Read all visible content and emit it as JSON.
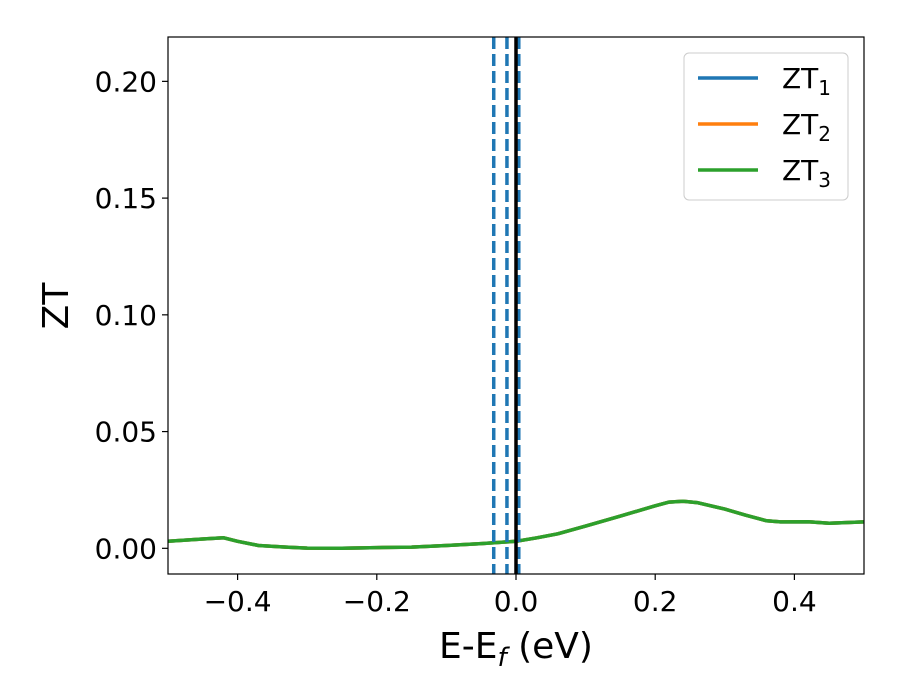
{
  "chart_data": {
    "type": "line",
    "xlabel": "E-E",
    "xlabel_sub": "f",
    "xlabel_unit": " (eV)",
    "ylabel": "ZT",
    "xlim": [
      -0.5,
      0.5
    ],
    "ylim": [
      -0.011,
      0.219
    ],
    "xticks": [
      -0.4,
      -0.2,
      0.0,
      0.2,
      0.4
    ],
    "xtick_labels": [
      "−0.4",
      "−0.2",
      "0.0",
      "0.2",
      "0.4"
    ],
    "yticks": [
      0.0,
      0.05,
      0.1,
      0.15,
      0.2
    ],
    "ytick_labels": [
      "0.00",
      "0.05",
      "0.10",
      "0.15",
      "0.20"
    ],
    "grid": false,
    "legend_position": "top-right",
    "series": [
      {
        "name": "ZT",
        "name_sub": "1",
        "color": "#1f77b4",
        "x": [
          -0.5,
          -0.45,
          -0.42,
          -0.4,
          -0.37,
          -0.33,
          -0.3,
          -0.25,
          -0.2,
          -0.15,
          -0.1,
          -0.05,
          0.0,
          0.03,
          0.06,
          0.1,
          0.15,
          0.2,
          0.22,
          0.24,
          0.26,
          0.3,
          0.33,
          0.36,
          0.38,
          0.42,
          0.45,
          0.5
        ],
        "y": [
          0.003,
          0.004,
          0.0045,
          0.003,
          0.0012,
          0.0005,
          0.0001,
          0.0,
          0.0003,
          0.0005,
          0.0012,
          0.002,
          0.003,
          0.0045,
          0.0062,
          0.0095,
          0.0138,
          0.0182,
          0.0198,
          0.0202,
          0.0196,
          0.0168,
          0.0142,
          0.0118,
          0.0113,
          0.0114,
          0.0107,
          0.0113
        ]
      },
      {
        "name": "ZT",
        "name_sub": "2",
        "color": "#ff7f0e",
        "x": [
          -0.5,
          -0.45,
          -0.42,
          -0.4,
          -0.37,
          -0.33,
          -0.3,
          -0.25,
          -0.2,
          -0.15,
          -0.1,
          -0.05,
          0.0,
          0.03,
          0.06,
          0.1,
          0.15,
          0.2,
          0.22,
          0.24,
          0.26,
          0.3,
          0.33,
          0.36,
          0.38,
          0.42,
          0.45,
          0.5
        ],
        "y": [
          0.003,
          0.004,
          0.0045,
          0.003,
          0.0012,
          0.0005,
          0.0001,
          0.0,
          0.0003,
          0.0005,
          0.0012,
          0.002,
          0.003,
          0.0045,
          0.0062,
          0.0095,
          0.0138,
          0.0182,
          0.0198,
          0.0202,
          0.0196,
          0.0168,
          0.0142,
          0.0118,
          0.0113,
          0.0114,
          0.0107,
          0.0113
        ]
      },
      {
        "name": "ZT",
        "name_sub": "3",
        "color": "#2ca02c",
        "x": [
          -0.5,
          -0.45,
          -0.42,
          -0.4,
          -0.37,
          -0.33,
          -0.3,
          -0.25,
          -0.2,
          -0.15,
          -0.1,
          -0.05,
          0.0,
          0.03,
          0.06,
          0.1,
          0.15,
          0.2,
          0.22,
          0.24,
          0.26,
          0.3,
          0.33,
          0.36,
          0.38,
          0.42,
          0.45,
          0.5
        ],
        "y": [
          0.003,
          0.004,
          0.0045,
          0.003,
          0.0012,
          0.0005,
          0.0001,
          0.0,
          0.0003,
          0.0005,
          0.0012,
          0.002,
          0.003,
          0.0045,
          0.0062,
          0.0095,
          0.0138,
          0.0182,
          0.0198,
          0.0202,
          0.0196,
          0.0168,
          0.0142,
          0.0118,
          0.0113,
          0.0114,
          0.0107,
          0.0113
        ]
      }
    ],
    "vlines": [
      {
        "x": -0.032,
        "style": "dashed",
        "color": "#1f77b4"
      },
      {
        "x": -0.013,
        "style": "dashed",
        "color": "#1f77b4"
      },
      {
        "x": 0.004,
        "style": "dashed",
        "color": "#1f77b4"
      },
      {
        "x": 0.0,
        "style": "solid",
        "color": "#000000"
      }
    ]
  }
}
